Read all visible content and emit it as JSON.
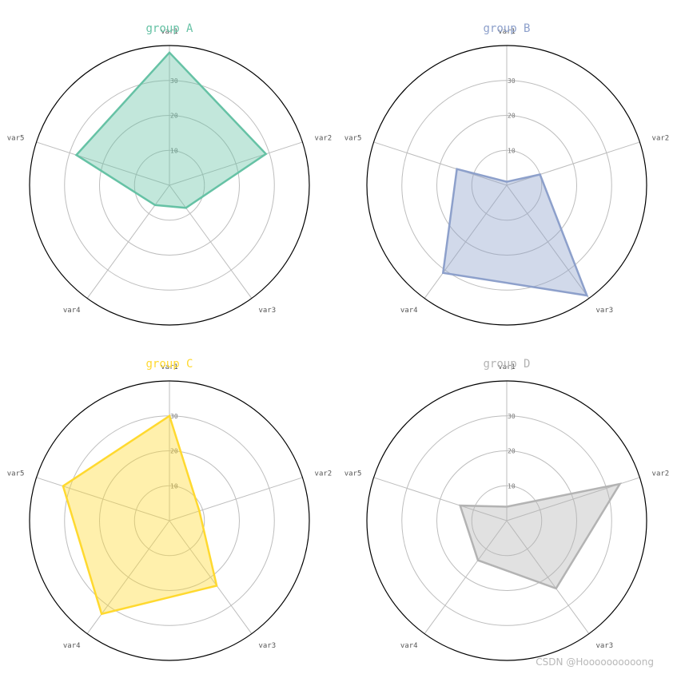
{
  "chart_data": [
    {
      "type": "radar",
      "title": "group A",
      "color": "#66c2a5",
      "categories": [
        "var1",
        "var2",
        "var3",
        "var4",
        "var5"
      ],
      "values": [
        38,
        29,
        8,
        7,
        28
      ],
      "rticks": [
        "10",
        "20",
        "30"
      ],
      "rlim": [
        0,
        40
      ]
    },
    {
      "type": "radar",
      "title": "group B",
      "color": "#8da0cb",
      "categories": [
        "var1",
        "var2",
        "var3",
        "var4",
        "var5"
      ],
      "values": [
        1,
        10,
        39,
        31,
        15
      ],
      "rticks": [
        "10",
        "20",
        "30"
      ],
      "rlim": [
        0,
        40
      ]
    },
    {
      "type": "radar",
      "title": "group C",
      "color": "#ffd92f",
      "categories": [
        "var1",
        "var2",
        "var3",
        "var4",
        "var5"
      ],
      "values": [
        30,
        9,
        23,
        33,
        32
      ],
      "rticks": [
        "10",
        "20",
        "30"
      ],
      "rlim": [
        0,
        40
      ]
    },
    {
      "type": "radar",
      "title": "group D",
      "color": "#b3b3b3",
      "categories": [
        "var1",
        "var2",
        "var3",
        "var4",
        "var5"
      ],
      "values": [
        4,
        34,
        24,
        14,
        14
      ],
      "rticks": [
        "10",
        "20",
        "30"
      ],
      "rlim": [
        0,
        40
      ]
    }
  ],
  "watermark": "CSDN @Hoooooooooong"
}
